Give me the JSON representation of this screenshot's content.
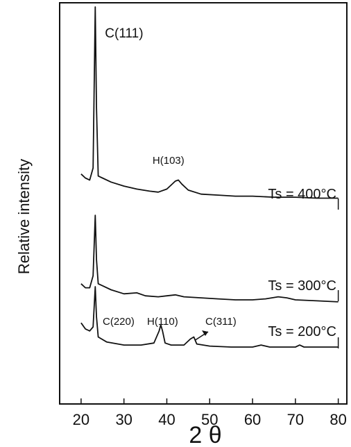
{
  "chart_data": {
    "type": "line",
    "title": "",
    "xlabel": "2 θ",
    "ylabel": "Relative intensity",
    "xlim": [
      15,
      82
    ],
    "xticks": [
      20,
      30,
      40,
      50,
      60,
      70,
      80
    ],
    "xtick_labels": [
      "20",
      "30",
      "40",
      "50",
      "60",
      "70",
      "80"
    ],
    "grid": false,
    "y_ticks_shown": false,
    "series": [
      {
        "name": "Ts = 400°C",
        "x": [
          20,
          21,
          22,
          22.8,
          23.3,
          23.6,
          24,
          25,
          27,
          30,
          33,
          36,
          38,
          40,
          41,
          42,
          42.7,
          43.5,
          45,
          48,
          52,
          56,
          60,
          65,
          70,
          75,
          80
        ],
        "y": [
          0.17,
          0.15,
          0.14,
          0.2,
          1.0,
          0.5,
          0.16,
          0.15,
          0.13,
          0.11,
          0.095,
          0.085,
          0.08,
          0.095,
          0.115,
          0.135,
          0.14,
          0.12,
          0.09,
          0.07,
          0.065,
          0.06,
          0.06,
          0.055,
          0.055,
          0.05,
          0.05
        ]
      },
      {
        "name": "Ts = 300°C",
        "x": [
          20,
          21,
          22,
          22.8,
          23.3,
          23.6,
          24,
          25,
          27,
          30,
          33,
          35,
          38,
          40,
          42,
          44,
          48,
          52,
          56,
          60,
          63,
          66,
          68,
          70,
          75,
          80
        ],
        "y": [
          0.08,
          0.06,
          0.06,
          0.12,
          0.42,
          0.2,
          0.08,
          0.07,
          0.05,
          0.03,
          0.035,
          0.02,
          0.015,
          0.02,
          0.025,
          0.015,
          0.01,
          0.005,
          0.0,
          0.0,
          0.005,
          0.015,
          0.01,
          0.0,
          -0.005,
          -0.01
        ]
      },
      {
        "name": "Ts = 200°C",
        "x": [
          20,
          21,
          22,
          22.8,
          23.3,
          23.6,
          24,
          26,
          30,
          34,
          37,
          38.2,
          38.6,
          39,
          39.6,
          41,
          44,
          45.5,
          46.3,
          47,
          50,
          55,
          60,
          62,
          64,
          70,
          71,
          72,
          80
        ],
        "y": [
          0.12,
          0.09,
          0.08,
          0.1,
          0.3,
          0.15,
          0.05,
          0.025,
          0.01,
          0.01,
          0.02,
          0.08,
          0.11,
          0.08,
          0.02,
          0.01,
          0.01,
          0.04,
          0.05,
          0.015,
          0.005,
          0.0,
          0.0,
          0.01,
          0.0,
          0.0,
          0.01,
          0.0,
          0.0
        ]
      }
    ],
    "annotations": [
      {
        "text": "C(111)",
        "x": 23.3
      },
      {
        "text": "H(103)",
        "x": 42.5
      },
      {
        "text": "C(220)",
        "x": 23.3
      },
      {
        "text": "H(110)",
        "x": 38.6
      },
      {
        "text": "C(311)",
        "x": 46.3
      }
    ]
  }
}
